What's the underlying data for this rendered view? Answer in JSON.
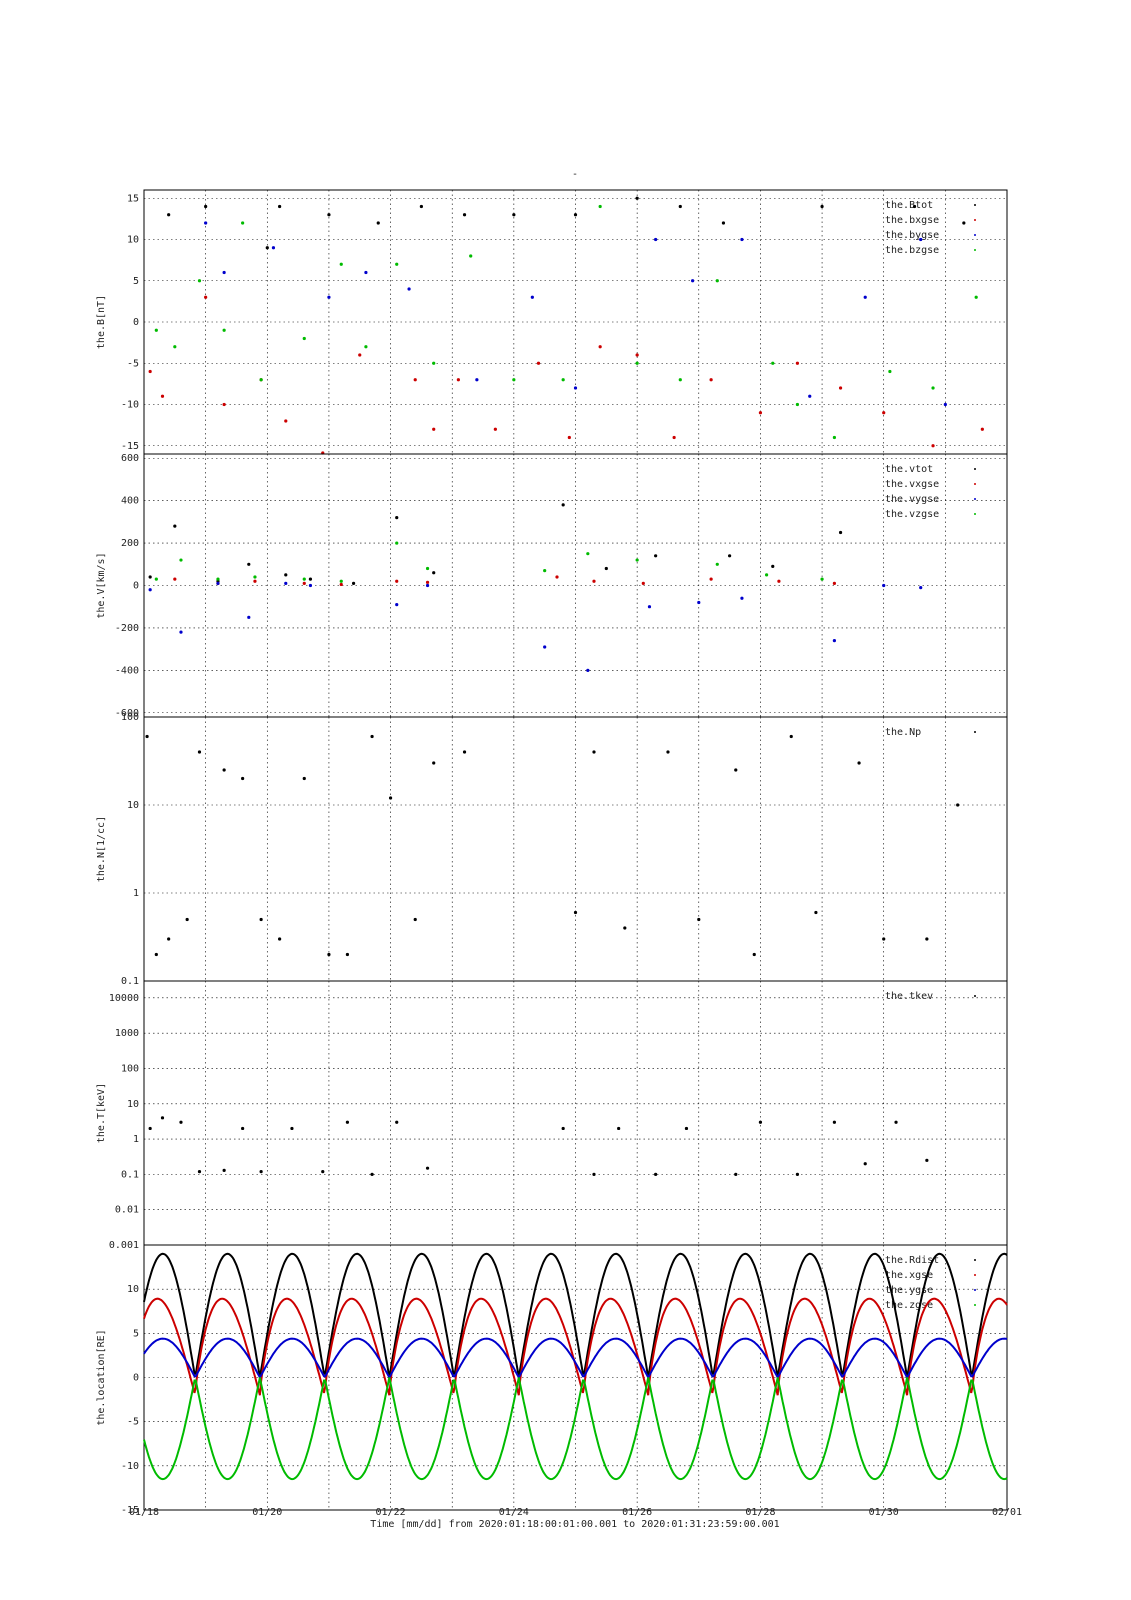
{
  "title": "-",
  "time_label": "Time [mm/dd]  from 2020:01:18:00:01:00.001  to  2020:01:31:23:59:00.001",
  "colors": {
    "black": "#000000",
    "red": "#cc0000",
    "green": "#00bb00",
    "blue": "#0000cc",
    "grid": "#000000"
  },
  "x_ticks": [
    "01/18",
    "01/20",
    "01/22",
    "01/24",
    "01/26",
    "01/28",
    "01/30",
    "02/01"
  ],
  "chart_data": [
    {
      "type": "scatter",
      "ylabel": "the.B[nT]",
      "ylim": [
        -16,
        16
      ],
      "scale": "linear",
      "yticks": [
        15,
        10,
        5,
        0,
        -5,
        -10,
        -15
      ],
      "legend": [
        "the.Btot",
        "the.bxgse",
        "the.bygse",
        "the.bzgse"
      ],
      "legend_placement": "top-right",
      "grid": true,
      "series": [
        {
          "name": "the.Btot",
          "color": "black",
          "points": [
            [
              0.4,
              13
            ],
            [
              1.0,
              14
            ],
            [
              2.0,
              9
            ],
            [
              2.2,
              14
            ],
            [
              3.0,
              13
            ],
            [
              3.8,
              12
            ],
            [
              4.5,
              14
            ],
            [
              5.2,
              13
            ],
            [
              6.0,
              13
            ],
            [
              7.0,
              13
            ],
            [
              8.0,
              15
            ],
            [
              8.7,
              14
            ],
            [
              9.4,
              12
            ],
            [
              11.0,
              14
            ],
            [
              12.5,
              14
            ],
            [
              13.3,
              12
            ]
          ]
        },
        {
          "name": "the.bxgse",
          "color": "red",
          "points": [
            [
              0.1,
              -6
            ],
            [
              0.3,
              -9
            ],
            [
              1.0,
              3
            ],
            [
              1.3,
              -10
            ],
            [
              1.9,
              -7
            ],
            [
              2.3,
              -12
            ],
            [
              2.9,
              -16
            ],
            [
              3.5,
              -4
            ],
            [
              4.4,
              -7
            ],
            [
              4.7,
              -13
            ],
            [
              5.1,
              -7
            ],
            [
              5.7,
              -13
            ],
            [
              6.4,
              -5
            ],
            [
              6.9,
              -14
            ],
            [
              7.4,
              -3
            ],
            [
              8.0,
              -4
            ],
            [
              8.6,
              -14
            ],
            [
              9.2,
              -7
            ],
            [
              10.0,
              -11
            ],
            [
              10.6,
              -5
            ],
            [
              11.3,
              -8
            ],
            [
              12.0,
              -11
            ],
            [
              12.8,
              -15
            ],
            [
              13.6,
              -13
            ]
          ]
        },
        {
          "name": "the.bygse",
          "color": "blue",
          "points": [
            [
              1.0,
              12
            ],
            [
              1.3,
              6
            ],
            [
              2.1,
              9
            ],
            [
              3.0,
              3
            ],
            [
              3.6,
              6
            ],
            [
              4.3,
              4
            ],
            [
              5.4,
              -7
            ],
            [
              6.3,
              3
            ],
            [
              7.0,
              -8
            ],
            [
              8.3,
              10
            ],
            [
              8.9,
              5
            ],
            [
              9.7,
              10
            ],
            [
              10.8,
              -9
            ],
            [
              11.7,
              3
            ],
            [
              12.6,
              10
            ],
            [
              13.0,
              -10
            ]
          ]
        },
        {
          "name": "the.bzgse",
          "color": "green",
          "points": [
            [
              0.2,
              -1
            ],
            [
              0.5,
              -3
            ],
            [
              0.9,
              5
            ],
            [
              1.3,
              -1
            ],
            [
              1.6,
              12
            ],
            [
              1.9,
              -7
            ],
            [
              2.6,
              -2
            ],
            [
              3.2,
              7
            ],
            [
              3.6,
              -3
            ],
            [
              4.1,
              7
            ],
            [
              4.7,
              -5
            ],
            [
              5.3,
              8
            ],
            [
              6.0,
              -7
            ],
            [
              6.8,
              -7
            ],
            [
              7.4,
              14
            ],
            [
              8.0,
              -5
            ],
            [
              8.7,
              -7
            ],
            [
              9.3,
              5
            ],
            [
              10.2,
              -5
            ],
            [
              10.6,
              -10
            ],
            [
              11.2,
              -14
            ],
            [
              12.1,
              -6
            ],
            [
              12.8,
              -8
            ],
            [
              13.5,
              3
            ]
          ]
        }
      ]
    },
    {
      "type": "scatter",
      "ylabel": "the.V[km/s]",
      "ylim": [
        -620,
        620
      ],
      "scale": "linear",
      "yticks": [
        600,
        400,
        200,
        0,
        -200,
        -400,
        -600
      ],
      "legend": [
        "the.vtot",
        "the.vxgse",
        "the.vygse",
        "the.vzgse"
      ],
      "legend_placement": "top-right",
      "grid": true,
      "series": [
        {
          "name": "the.vtot",
          "color": "black",
          "points": [
            [
              0.1,
              40
            ],
            [
              0.5,
              280
            ],
            [
              1.2,
              20
            ],
            [
              1.7,
              100
            ],
            [
              2.3,
              50
            ],
            [
              2.7,
              30
            ],
            [
              3.4,
              10
            ],
            [
              4.1,
              320
            ],
            [
              4.7,
              60
            ],
            [
              6.8,
              380
            ],
            [
              7.5,
              80
            ],
            [
              8.3,
              140
            ],
            [
              9.5,
              140
            ],
            [
              10.2,
              90
            ],
            [
              11.3,
              250
            ]
          ]
        },
        {
          "name": "the.vxgse",
          "color": "red",
          "points": [
            [
              0.5,
              30
            ],
            [
              1.2,
              10
            ],
            [
              1.8,
              20
            ],
            [
              2.6,
              10
            ],
            [
              3.2,
              5
            ],
            [
              4.1,
              20
            ],
            [
              4.6,
              15
            ],
            [
              6.7,
              40
            ],
            [
              7.3,
              20
            ],
            [
              8.1,
              10
            ],
            [
              9.2,
              30
            ],
            [
              10.3,
              20
            ],
            [
              11.2,
              10
            ]
          ]
        },
        {
          "name": "the.vygse",
          "color": "blue",
          "points": [
            [
              0.1,
              -20
            ],
            [
              0.6,
              -220
            ],
            [
              1.2,
              10
            ],
            [
              1.7,
              -150
            ],
            [
              2.3,
              10
            ],
            [
              2.7,
              0
            ],
            [
              4.1,
              -90
            ],
            [
              4.6,
              0
            ],
            [
              6.5,
              -290
            ],
            [
              7.2,
              -400
            ],
            [
              8.2,
              -100
            ],
            [
              9.0,
              -80
            ],
            [
              9.7,
              -60
            ],
            [
              11.2,
              -260
            ],
            [
              12.0,
              0
            ],
            [
              12.6,
              -10
            ]
          ]
        },
        {
          "name": "the.vzgse",
          "color": "green",
          "points": [
            [
              0.2,
              30
            ],
            [
              0.6,
              120
            ],
            [
              1.2,
              30
            ],
            [
              1.8,
              40
            ],
            [
              2.6,
              30
            ],
            [
              3.2,
              20
            ],
            [
              4.1,
              200
            ],
            [
              4.6,
              80
            ],
            [
              6.5,
              70
            ],
            [
              7.2,
              150
            ],
            [
              8.0,
              120
            ],
            [
              9.3,
              100
            ],
            [
              10.1,
              50
            ],
            [
              11.0,
              30
            ]
          ]
        }
      ]
    },
    {
      "type": "scatter",
      "ylabel": "the.N[1/cc]",
      "ylim": [
        0.1,
        100
      ],
      "scale": "log",
      "yticks": [
        100,
        10,
        1,
        0.1
      ],
      "legend": [
        "the.Np"
      ],
      "legend_placement": "top-right",
      "grid": true,
      "series": [
        {
          "name": "the.Np",
          "color": "black",
          "points": [
            [
              0.05,
              60
            ],
            [
              0.2,
              0.2
            ],
            [
              0.4,
              0.3
            ],
            [
              0.7,
              0.5
            ],
            [
              0.9,
              40
            ],
            [
              1.3,
              25
            ],
            [
              1.6,
              20
            ],
            [
              1.9,
              0.5
            ],
            [
              2.2,
              0.3
            ],
            [
              2.6,
              20
            ],
            [
              3.0,
              0.2
            ],
            [
              3.3,
              0.2
            ],
            [
              3.7,
              60
            ],
            [
              4.0,
              12
            ],
            [
              4.4,
              0.5
            ],
            [
              4.7,
              30
            ],
            [
              5.2,
              40
            ],
            [
              7.0,
              0.6
            ],
            [
              7.3,
              40
            ],
            [
              7.8,
              0.4
            ],
            [
              8.5,
              40
            ],
            [
              9.0,
              0.5
            ],
            [
              9.6,
              25
            ],
            [
              9.9,
              0.2
            ],
            [
              10.5,
              60
            ],
            [
              10.9,
              0.6
            ],
            [
              11.6,
              30
            ],
            [
              12.0,
              0.3
            ],
            [
              12.7,
              0.3
            ],
            [
              13.2,
              10
            ]
          ]
        }
      ]
    },
    {
      "type": "scatter",
      "ylabel": "the.T[keV]",
      "ylim": [
        0.001,
        30000
      ],
      "scale": "log",
      "yticks": [
        10000,
        1000,
        100,
        10,
        1,
        0.1,
        0.01,
        0.001
      ],
      "legend": [
        "the.tkev"
      ],
      "legend_placement": "top-right",
      "grid": true,
      "series": [
        {
          "name": "the.tkev",
          "color": "black",
          "points": [
            [
              0.1,
              2
            ],
            [
              0.3,
              4
            ],
            [
              0.6,
              3
            ],
            [
              0.9,
              0.12
            ],
            [
              1.3,
              0.13
            ],
            [
              1.6,
              2
            ],
            [
              1.9,
              0.12
            ],
            [
              2.4,
              2
            ],
            [
              2.9,
              0.12
            ],
            [
              3.3,
              3
            ],
            [
              3.7,
              0.1
            ],
            [
              4.1,
              3
            ],
            [
              4.6,
              0.15
            ],
            [
              6.8,
              2
            ],
            [
              7.3,
              0.1
            ],
            [
              7.7,
              2
            ],
            [
              8.3,
              0.1
            ],
            [
              8.8,
              2
            ],
            [
              9.6,
              0.1
            ],
            [
              10.0,
              3
            ],
            [
              10.6,
              0.1
            ],
            [
              11.2,
              3
            ],
            [
              11.7,
              0.2
            ],
            [
              12.2,
              3
            ],
            [
              12.7,
              0.25
            ]
          ]
        }
      ]
    },
    {
      "type": "line",
      "ylabel": "the.location[RE]",
      "ylim": [
        -15,
        15
      ],
      "scale": "linear",
      "yticks": [
        10,
        5,
        0,
        -5,
        -10,
        -15
      ],
      "legend": [
        "the.Rdist",
        "the.xgse",
        "the.ygse",
        "the.zgse"
      ],
      "legend_placement": "top-right",
      "grid": true,
      "period_days": 1.05,
      "series": [
        {
          "name": "the.Rdist",
          "color": "black",
          "kind": "abs-sine",
          "amplitude": 14,
          "phase": 0.22
        },
        {
          "name": "the.xgse",
          "color": "red",
          "kind": "skew",
          "amplitude": 9,
          "phase": 0.22
        },
        {
          "name": "the.ygse",
          "color": "blue",
          "kind": "abs-sine",
          "amplitude": 4.4,
          "phase": 0.22
        },
        {
          "name": "the.zgse",
          "color": "green",
          "kind": "neg-abs-sine",
          "amplitude": 11.5,
          "phase": 0.22
        }
      ]
    }
  ]
}
